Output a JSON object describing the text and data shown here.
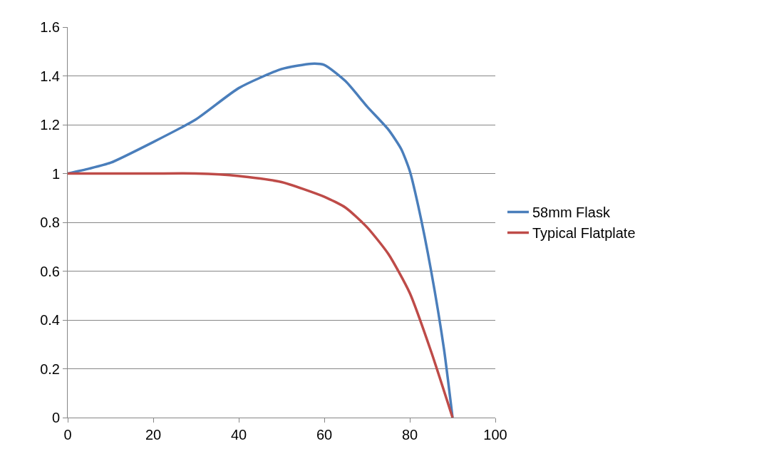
{
  "chart_data": {
    "type": "line",
    "xlim": [
      0,
      100
    ],
    "xticks": [
      0,
      20,
      40,
      60,
      80,
      100
    ],
    "ylim": [
      0,
      1.6
    ],
    "yticks": [
      0,
      0.2,
      0.4,
      0.6,
      0.8,
      1,
      1.2,
      1.4,
      1.6
    ],
    "grid": "y",
    "legend": "right",
    "marker": "none",
    "line_style": "solid",
    "x": [
      0,
      5,
      10,
      20,
      30,
      40,
      50,
      57,
      60,
      65,
      70,
      75,
      78,
      80,
      82,
      85,
      88,
      90
    ],
    "series": [
      {
        "name": "58mm Flask",
        "color": "#4a7ebb",
        "values": [
          1.0,
          1.02,
          1.044,
          1.129,
          1.222,
          1.35,
          1.428,
          1.45,
          1.445,
          1.378,
          1.275,
          1.18,
          1.1,
          1.01,
          0.865,
          0.6,
          0.28,
          0
        ]
      },
      {
        "name": "Typical Flatplate",
        "color": "#be4b48",
        "x": [
          0,
          10,
          20,
          30,
          40,
          50,
          60,
          65,
          70,
          75,
          80,
          85,
          90
        ],
        "values": [
          1,
          1,
          1,
          1,
          0.99,
          0.965,
          0.905,
          0.86,
          0.78,
          0.67,
          0.51,
          0.27,
          0
        ]
      }
    ]
  }
}
